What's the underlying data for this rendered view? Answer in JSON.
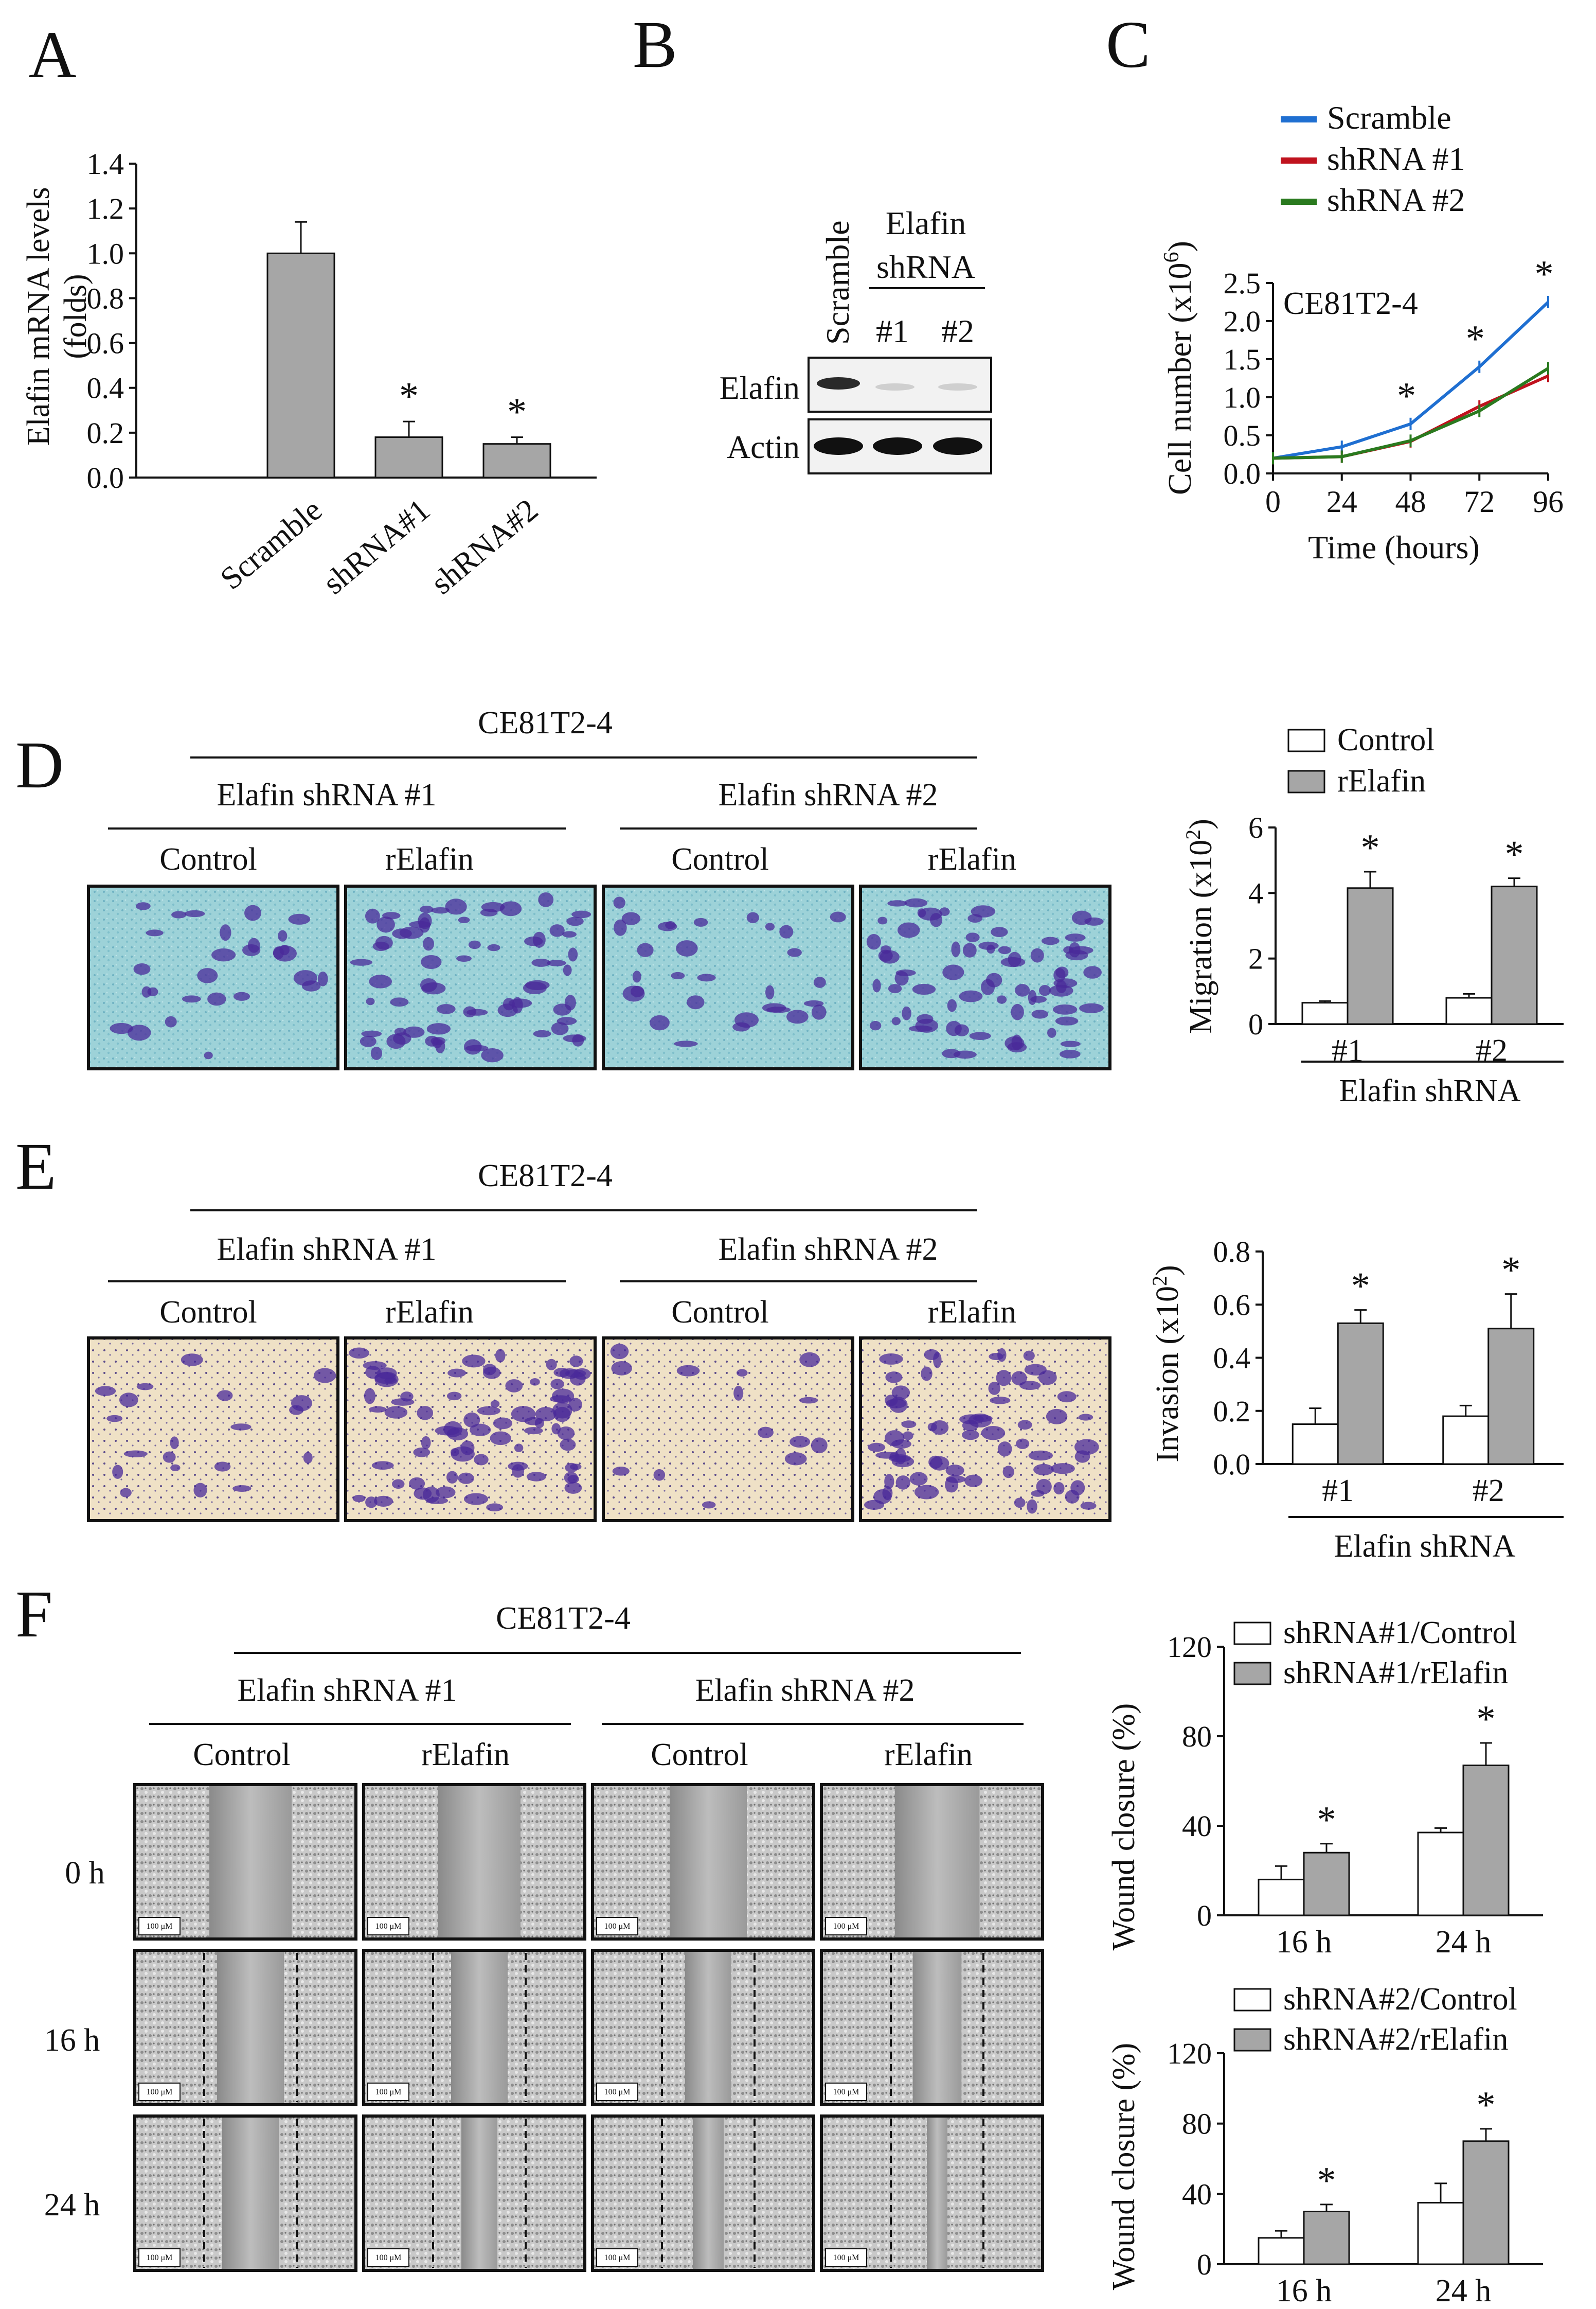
{
  "panels": {
    "A": {
      "letter": "A"
    },
    "B": {
      "letter": "B",
      "group_label_line1": "Elafin",
      "group_label_line2": "shRNA",
      "lanes": [
        "Scramble",
        "#1",
        "#2"
      ],
      "blots": [
        "Elafin",
        "Actin"
      ]
    },
    "C": {
      "letter": "C"
    },
    "D": {
      "letter": "D",
      "cell_line": "CE81T2-4",
      "groups": [
        "Elafin shRNA #1",
        "Elafin shRNA #2"
      ],
      "conditions": [
        "Control",
        "rElafin",
        "Control",
        "rElafin"
      ]
    },
    "E": {
      "letter": "E",
      "cell_line": "CE81T2-4",
      "groups": [
        "Elafin shRNA #1",
        "Elafin shRNA #2"
      ],
      "conditions": [
        "Control",
        "rElafin",
        "Control",
        "rElafin"
      ]
    },
    "F": {
      "letter": "F",
      "cell_line": "CE81T2-4",
      "groups": [
        "Elafin shRNA #1",
        "Elafin shRNA #2"
      ],
      "conditions": [
        "Control",
        "rElafin",
        "Control",
        "rElafin"
      ],
      "timepoints": [
        "0 h",
        "16 h",
        "24 h"
      ],
      "scale_bar": "100 μM"
    }
  },
  "colors": {
    "gray_bar": "#a6a6a6",
    "scramble": "#1f6fd1",
    "shrna1": "#c0121e",
    "shrna2": "#2a7a1f",
    "migration_bg": "#9dd2d8",
    "invasion_bg": "#efe1c6",
    "stain": "#4a2a9a"
  },
  "chart_data": [
    {
      "id": "A",
      "type": "bar",
      "ylabel_line1": "Elafin mRNA levels",
      "ylabel_line2": "(folds)",
      "categories": [
        "Scramble",
        "shRNA#1",
        "shRNA#2"
      ],
      "values": [
        1.0,
        0.18,
        0.15
      ],
      "errors": [
        0.14,
        0.07,
        0.03
      ],
      "significant": [
        false,
        true,
        true
      ],
      "sig_mark": "*",
      "ylim": [
        0,
        1.4
      ],
      "yticks": [
        "0.0",
        "0.2",
        "0.4",
        "0.6",
        "0.8",
        "1.0",
        "1.2",
        "1.4"
      ]
    },
    {
      "id": "C",
      "type": "line",
      "annotation": "CE81T2-4",
      "xlabel": "Time (hours)",
      "ylabel": "Cell number (x10",
      "ylabel_sup": "6",
      "ylabel_tail": ")",
      "x": [
        0,
        24,
        48,
        72,
        96
      ],
      "xticks": [
        "0",
        "24",
        "48",
        "72",
        "96"
      ],
      "ylim": [
        0,
        2.5
      ],
      "yticks": [
        "0.0",
        "0.5",
        "1.0",
        "1.5",
        "2.0",
        "2.5"
      ],
      "series": [
        {
          "name": "Scramble",
          "values": [
            0.2,
            0.35,
            0.65,
            1.4,
            2.25
          ]
        },
        {
          "name": "shRNA #1",
          "values": [
            0.2,
            0.22,
            0.42,
            0.88,
            1.28
          ]
        },
        {
          "name": "shRNA #2",
          "values": [
            0.2,
            0.22,
            0.43,
            0.82,
            1.38
          ]
        }
      ],
      "sig_mark": "*",
      "significant_at": [
        48,
        72,
        96
      ]
    },
    {
      "id": "D",
      "type": "bar",
      "ylabel": "Migration (x10",
      "ylabel_sup": "2",
      "ylabel_tail": ")",
      "categories": [
        "#1",
        "#2"
      ],
      "group_label": "Elafin shRNA",
      "series": [
        {
          "name": "Control",
          "values": [
            0.65,
            0.8
          ],
          "errors": [
            0.05,
            0.12
          ]
        },
        {
          "name": "rElafin",
          "values": [
            4.15,
            4.2
          ],
          "errors": [
            0.5,
            0.25
          ]
        }
      ],
      "sig_mark": "*",
      "ylim": [
        0,
        6
      ],
      "yticks": [
        "0",
        "2",
        "4",
        "6"
      ]
    },
    {
      "id": "E",
      "type": "bar",
      "ylabel": "Invasion (x10",
      "ylabel_sup": "2",
      "ylabel_tail": ")",
      "categories": [
        "#1",
        "#2"
      ],
      "group_label": "Elafin shRNA",
      "series": [
        {
          "name": "Control",
          "values": [
            0.15,
            0.18
          ],
          "errors": [
            0.06,
            0.04
          ]
        },
        {
          "name": "rElafin",
          "values": [
            0.53,
            0.51
          ],
          "errors": [
            0.05,
            0.13
          ]
        }
      ],
      "sig_mark": "*",
      "ylim": [
        0,
        0.8
      ],
      "yticks": [
        "0.0",
        "0.2",
        "0.4",
        "0.6",
        "0.8"
      ]
    },
    {
      "id": "F1",
      "type": "bar",
      "ylabel": "Wound closure (%)",
      "categories": [
        "16 h",
        "24 h"
      ],
      "series": [
        {
          "name": "shRNA#1/Control",
          "values": [
            16,
            37
          ],
          "errors": [
            6,
            2
          ]
        },
        {
          "name": "shRNA#1/rElafin",
          "values": [
            28,
            67
          ],
          "errors": [
            4,
            10
          ]
        }
      ],
      "sig_mark": "*",
      "ylim": [
        0,
        120
      ],
      "yticks": [
        "0",
        "40",
        "80",
        "120"
      ]
    },
    {
      "id": "F2",
      "type": "bar",
      "ylabel": "Wound closure (%)",
      "categories": [
        "16 h",
        "24 h"
      ],
      "series": [
        {
          "name": "shRNA#2/Control",
          "values": [
            15,
            35
          ],
          "errors": [
            4,
            11
          ]
        },
        {
          "name": "shRNA#2/rElafin",
          "values": [
            30,
            70
          ],
          "errors": [
            4,
            7
          ]
        }
      ],
      "sig_mark": "*",
      "ylim": [
        0,
        120
      ],
      "yticks": [
        "0",
        "40",
        "80",
        "120"
      ]
    }
  ]
}
